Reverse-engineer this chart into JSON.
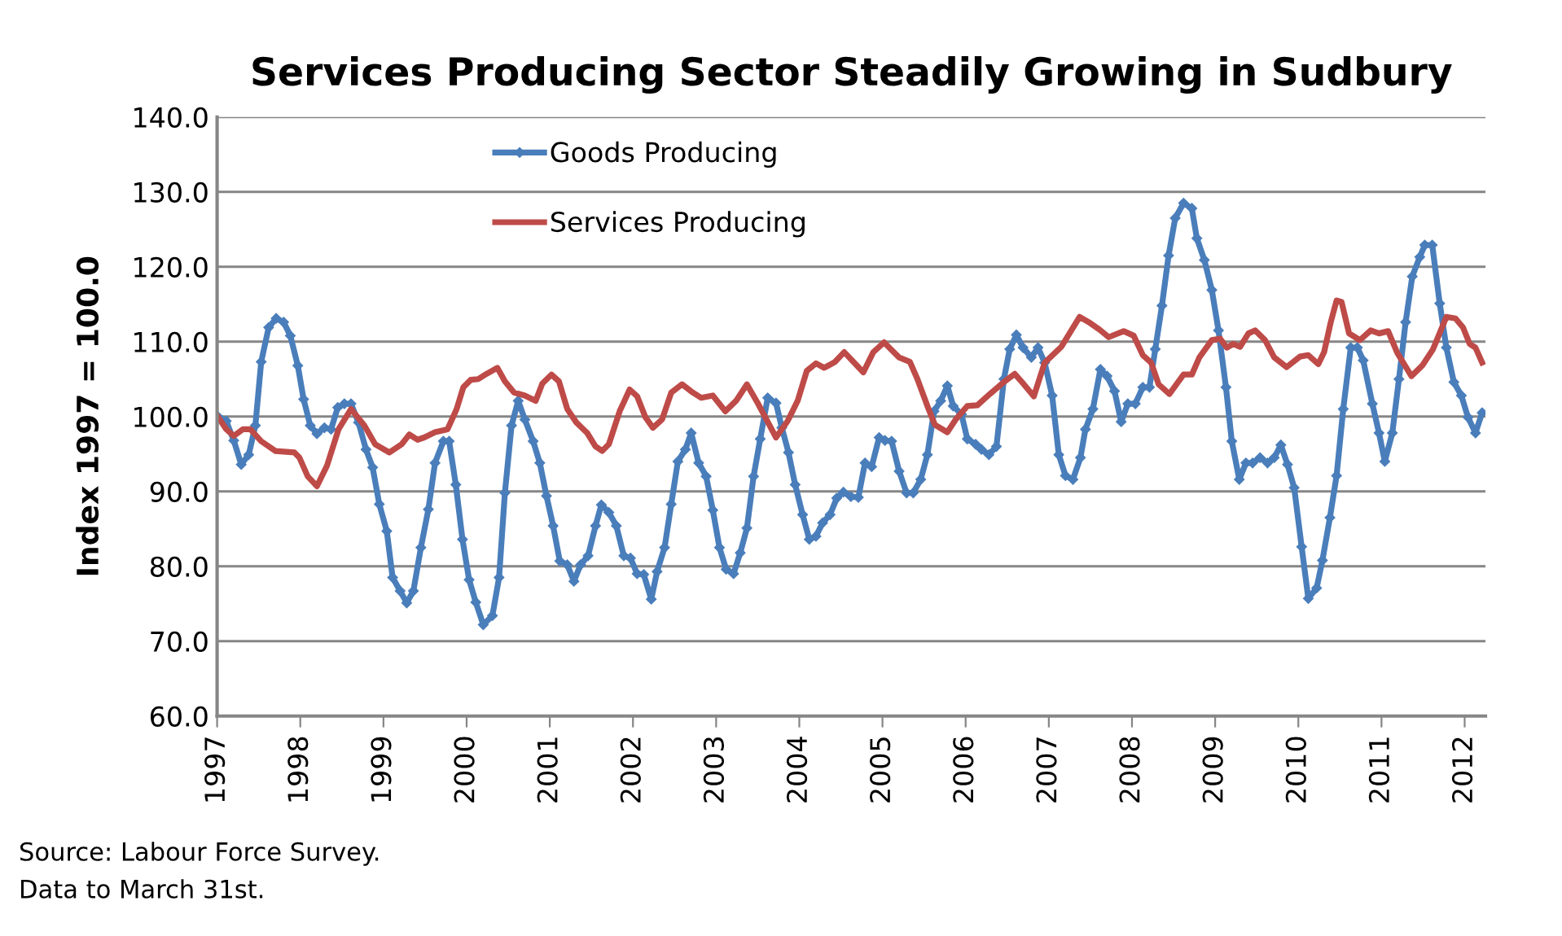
{
  "chart_data": {
    "type": "line",
    "title": "Services Producing Sector Steadily Growing in Sudbury",
    "ylabel": "Index 1997 = 100.0",
    "xlim": [
      1997,
      2012.25
    ],
    "xticks": [
      1997,
      1998,
      1999,
      2000,
      2001,
      2002,
      2003,
      2004,
      2005,
      2006,
      2007,
      2008,
      2009,
      2010,
      2011,
      2012
    ],
    "ylim": [
      60,
      140
    ],
    "yticks": [
      {
        "value": 60,
        "label": "60.0"
      },
      {
        "value": 70,
        "label": "70.0"
      },
      {
        "value": 80,
        "label": "80.0"
      },
      {
        "value": 90,
        "label": "90.0"
      },
      {
        "value": 100,
        "label": "100.0"
      },
      {
        "value": 110,
        "label": "110.0"
      },
      {
        "value": 120,
        "label": "120.0"
      },
      {
        "value": 130,
        "label": "130.0"
      },
      {
        "value": 140,
        "label": "140.0"
      }
    ],
    "grid": "y",
    "legend": "top left",
    "line_style": "solid",
    "annotations": [
      "Source: Labour Force Survey.",
      "Data to March 31st."
    ],
    "series": [
      {
        "name": "Goods Producing",
        "color": "#4a7ebb",
        "marker": "diamond",
        "x": [
          1997.0,
          1997.11,
          1997.2,
          1997.29,
          1997.38,
          1997.46,
          1997.53,
          1997.62,
          1997.71,
          1997.8,
          1997.88,
          1997.97,
          1998.04,
          1998.12,
          1998.2,
          1998.29,
          1998.37,
          1998.45,
          1998.53,
          1998.61,
          1998.7,
          1998.79,
          1998.87,
          1998.95,
          1999.04,
          1999.11,
          1999.2,
          1999.28,
          1999.36,
          1999.45,
          1999.54,
          1999.62,
          1999.72,
          1999.79,
          1999.87,
          1999.95,
          2000.03,
          2000.11,
          2000.2,
          2000.31,
          2000.39,
          2000.46,
          2000.54,
          2000.62,
          2000.7,
          2000.8,
          2000.88,
          2000.96,
          2001.04,
          2001.12,
          2001.21,
          2001.29,
          2001.37,
          2001.46,
          2001.55,
          2001.62,
          2001.71,
          2001.8,
          2001.89,
          2001.97,
          2002.05,
          2002.13,
          2002.22,
          2002.29,
          2002.38,
          2002.46,
          2002.54,
          2002.63,
          2002.7,
          2002.79,
          2002.88,
          2002.96,
          2003.04,
          2003.12,
          2003.21,
          2003.29,
          2003.37,
          2003.45,
          2003.53,
          2003.62,
          2003.72,
          2003.79,
          2003.87,
          2003.95,
          2004.04,
          2004.12,
          2004.2,
          2004.28,
          2004.37,
          2004.45,
          2004.53,
          2004.62,
          2004.71,
          2004.79,
          2004.87,
          2004.96,
          2005.03,
          2005.11,
          2005.2,
          2005.29,
          2005.37,
          2005.46,
          2005.54,
          2005.62,
          2005.7,
          2005.78,
          2005.85,
          2005.95,
          2006.02,
          2006.12,
          2006.19,
          2006.28,
          2006.37,
          2006.46,
          2006.53,
          2006.61,
          2006.69,
          2006.79,
          2006.87,
          2006.95,
          2007.04,
          2007.12,
          2007.2,
          2007.29,
          2007.38,
          2007.44,
          2007.53,
          2007.62,
          2007.7,
          2007.79,
          2007.87,
          2007.95,
          2008.04,
          2008.13,
          2008.21,
          2008.28,
          2008.36,
          2008.44,
          2008.52,
          2008.62,
          2008.72,
          2008.78,
          2008.87,
          2008.96,
          2009.04,
          2009.13,
          2009.2,
          2009.29,
          2009.37,
          2009.45,
          2009.54,
          2009.63,
          2009.71,
          2009.79,
          2009.87,
          2009.95,
          2010.04,
          2010.12,
          2010.22,
          2010.29,
          2010.38,
          2010.46,
          2010.54,
          2010.63,
          2010.71,
          2010.78,
          2010.89,
          2010.97,
          2011.04,
          2011.13,
          2011.21,
          2011.29,
          2011.37,
          2011.46,
          2011.52,
          2011.61,
          2011.7,
          2011.78,
          2011.87,
          2011.96,
          2012.04,
          2012.13,
          2012.21
        ],
        "values": [
          100.1,
          99.4,
          96.8,
          93.6,
          94.9,
          98.8,
          107.3,
          111.9,
          113.1,
          112.6,
          110.8,
          106.8,
          102.3,
          98.8,
          97.7,
          98.5,
          98.3,
          101.2,
          101.7,
          101.7,
          99.2,
          95.6,
          93.2,
          88.3,
          84.7,
          78.5,
          76.7,
          75.1,
          76.7,
          82.5,
          87.6,
          93.8,
          96.7,
          96.7,
          90.9,
          83.6,
          78.2,
          75.2,
          72.2,
          73.4,
          78.5,
          89.8,
          98.8,
          102.1,
          99.6,
          96.7,
          93.8,
          89.4,
          85.4,
          80.7,
          80.2,
          78.0,
          80.2,
          81.4,
          85.4,
          88.2,
          87.2,
          85.4,
          81.4,
          81.1,
          79.0,
          78.9,
          75.6,
          79.3,
          82.5,
          88.3,
          94.0,
          95.6,
          97.8,
          93.8,
          92.0,
          87.5,
          82.5,
          79.6,
          79.0,
          81.8,
          85.1,
          92.0,
          97.0,
          102.5,
          101.8,
          98.5,
          95.2,
          90.9,
          86.9,
          83.6,
          84.0,
          85.8,
          86.9,
          89.1,
          89.9,
          89.3,
          89.2,
          93.8,
          93.3,
          97.2,
          96.8,
          96.7,
          92.7,
          89.8,
          89.8,
          91.6,
          94.9,
          100.7,
          102.1,
          104.1,
          101.4,
          100.3,
          97.0,
          96.3,
          95.6,
          94.9,
          96.0,
          105.0,
          109.0,
          110.9,
          109.2,
          107.9,
          109.2,
          107.2,
          102.8,
          94.9,
          92.1,
          91.6,
          94.5,
          98.3,
          101.0,
          106.3,
          105.4,
          103.4,
          99.3,
          101.7,
          101.7,
          103.9,
          103.9,
          109.0,
          114.8,
          121.5,
          126.5,
          128.5,
          127.8,
          123.8,
          120.9,
          116.9,
          111.5,
          103.9,
          96.7,
          91.6,
          93.8,
          93.8,
          94.5,
          93.8,
          94.5,
          96.2,
          93.6,
          90.5,
          82.6,
          75.7,
          77.1,
          80.8,
          86.5,
          92.1,
          101.0,
          109.2,
          109.2,
          107.5,
          101.7,
          97.8,
          94.0,
          97.8,
          105.0,
          112.6,
          118.7,
          121.3,
          122.9,
          122.9,
          115.1,
          109.2,
          104.6,
          102.8,
          99.9,
          97.8,
          100.5
        ]
      },
      {
        "name": "Services Producing",
        "color": "#be4b48",
        "marker": "none",
        "x": [
          1997.0,
          1997.11,
          1997.2,
          1997.31,
          1997.4,
          1997.53,
          1997.7,
          1997.93,
          1997.99,
          1998.09,
          1998.2,
          1998.32,
          1998.46,
          1998.61,
          1998.77,
          1998.9,
          1999.07,
          1999.22,
          1999.31,
          1999.41,
          1999.49,
          1999.62,
          1999.77,
          1999.88,
          1999.96,
          2000.05,
          2000.14,
          2000.24,
          2000.37,
          2000.46,
          2000.57,
          2000.7,
          2000.83,
          2000.91,
          2001.02,
          2001.11,
          2001.21,
          2001.32,
          2001.45,
          2001.55,
          2001.63,
          2001.71,
          2001.84,
          2001.96,
          2002.05,
          2002.15,
          2002.24,
          2002.35,
          2002.46,
          2002.59,
          2002.72,
          2002.82,
          2002.96,
          2003.11,
          2003.24,
          2003.37,
          2003.5,
          2003.72,
          2003.86,
          2003.98,
          2004.09,
          2004.2,
          2004.3,
          2004.43,
          2004.54,
          2004.65,
          2004.77,
          2004.89,
          2005.02,
          2005.1,
          2005.2,
          2005.33,
          2005.42,
          2005.54,
          2005.63,
          2005.78,
          2005.88,
          2006.02,
          2006.14,
          2006.29,
          2006.47,
          2006.59,
          2006.7,
          2006.82,
          2006.95,
          2007.15,
          2007.37,
          2007.48,
          2007.61,
          2007.72,
          2007.9,
          2008.02,
          2008.13,
          2008.23,
          2008.32,
          2008.45,
          2008.62,
          2008.72,
          2008.81,
          2008.96,
          2009.06,
          2009.14,
          2009.22,
          2009.3,
          2009.4,
          2009.48,
          2009.6,
          2009.71,
          2009.86,
          2010.02,
          2010.12,
          2010.24,
          2010.31,
          2010.39,
          2010.46,
          2010.52,
          2010.61,
          2010.74,
          2010.87,
          2010.97,
          2011.08,
          2011.19,
          2011.36,
          2011.49,
          2011.62,
          2011.78,
          2011.89,
          2011.98,
          2012.06,
          2012.13,
          2012.21
        ],
        "values": [
          100.1,
          98.3,
          97.4,
          98.3,
          98.3,
          96.7,
          95.4,
          95.2,
          94.5,
          92.0,
          90.7,
          93.4,
          98.3,
          101.0,
          98.8,
          96.3,
          95.2,
          96.3,
          97.6,
          96.9,
          97.2,
          97.9,
          98.3,
          101.0,
          103.9,
          104.9,
          105.0,
          105.7,
          106.5,
          104.7,
          103.2,
          102.8,
          102.1,
          104.4,
          105.6,
          104.7,
          101.0,
          99.2,
          97.8,
          96.0,
          95.4,
          96.3,
          100.7,
          103.6,
          102.7,
          99.9,
          98.5,
          99.6,
          103.2,
          104.3,
          103.2,
          102.5,
          102.8,
          100.7,
          102.1,
          104.3,
          101.8,
          97.2,
          99.4,
          102.1,
          106.1,
          107.1,
          106.5,
          107.3,
          108.6,
          107.3,
          105.9,
          108.6,
          109.9,
          109.0,
          107.9,
          107.3,
          105.0,
          101.4,
          98.9,
          97.9,
          99.6,
          101.4,
          101.5,
          103.0,
          104.7,
          105.7,
          104.3,
          102.7,
          107.2,
          109.3,
          113.3,
          112.6,
          111.6,
          110.6,
          111.4,
          110.8,
          108.2,
          107.2,
          104.3,
          103.0,
          105.6,
          105.6,
          107.9,
          110.2,
          110.4,
          109.2,
          109.7,
          109.3,
          111.1,
          111.5,
          110.2,
          107.9,
          106.6,
          108.0,
          108.2,
          107.0,
          108.6,
          112.6,
          115.5,
          115.3,
          111.1,
          110.2,
          111.5,
          111.1,
          111.4,
          108.5,
          105.4,
          106.8,
          109.0,
          113.3,
          113.1,
          111.9,
          109.7,
          109.2,
          107.2
        ]
      }
    ]
  }
}
